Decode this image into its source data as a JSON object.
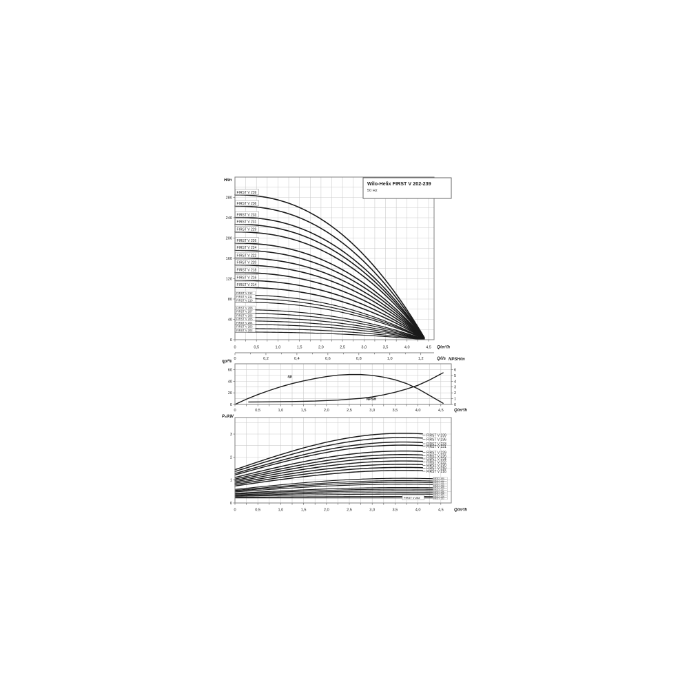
{
  "header": {
    "title": "Wilo-Helix FIRST V 202-239",
    "subtitle": "50 Hz"
  },
  "chart_data": [
    {
      "type": "line",
      "id": "head-flow",
      "title": "Wilo-Helix FIRST V 202-239",
      "subtitle": "50 Hz",
      "ylabel": "H/m",
      "xlabel": "Q/m³/h",
      "xlabel_secondary": "Q/l/s",
      "xlim": [
        0,
        4.63
      ],
      "ylim": [
        0,
        320
      ],
      "xtick_values": [
        0,
        0.5,
        1,
        1.5,
        2,
        2.5,
        3,
        3.5,
        4,
        4.5
      ],
      "xtick_labels": [
        "0",
        "0,5",
        "1,0",
        "1,5",
        "2,0",
        "2,5",
        "3,0",
        "3,5",
        "4,0",
        "4,5"
      ],
      "ytick_values": [
        0,
        40,
        80,
        120,
        160,
        200,
        240,
        280
      ],
      "xtick2_values_ls": [
        0,
        0.2,
        0.4,
        0.6,
        0.8,
        1.0,
        1.2
      ],
      "xtick2_labels": [
        "0",
        "0,2",
        "0,4",
        "0,6",
        "0,8",
        "1,0",
        "1,2"
      ],
      "ls_to_m3h": 3.6,
      "grid": {
        "x_step": 0.25,
        "y_step": 20
      },
      "curve_end_q": 4.42,
      "curve_exponent": 2.25,
      "series": [
        {
          "label": "FIRST V 239",
          "shutoff_head_m": 285,
          "small_label": false
        },
        {
          "label": "FIRST V 236",
          "shutoff_head_m": 263,
          "small_label": false
        },
        {
          "label": "FIRST V 233",
          "shutoff_head_m": 241,
          "small_label": false
        },
        {
          "label": "FIRST V 231",
          "shutoff_head_m": 227,
          "small_label": false
        },
        {
          "label": "FIRST V 229",
          "shutoff_head_m": 212,
          "small_label": false
        },
        {
          "label": "FIRST V 226",
          "shutoff_head_m": 190,
          "small_label": false
        },
        {
          "label": "FIRST V 224",
          "shutoff_head_m": 176,
          "small_label": false
        },
        {
          "label": "FIRST V 222",
          "shutoff_head_m": 161,
          "small_label": false
        },
        {
          "label": "FIRST V 220",
          "shutoff_head_m": 147,
          "small_label": false
        },
        {
          "label": "FIRST V 218",
          "shutoff_head_m": 132,
          "small_label": false
        },
        {
          "label": "FIRST V 216",
          "shutoff_head_m": 117,
          "small_label": false
        },
        {
          "label": "FIRST V 214",
          "shutoff_head_m": 103,
          "small_label": false
        },
        {
          "label": "FIRST V 212",
          "shutoff_head_m": 88,
          "small_label": true
        },
        {
          "label": "FIRST V 211",
          "shutoff_head_m": 81,
          "small_label": true
        },
        {
          "label": "FIRST V 210",
          "shutoff_head_m": 74,
          "small_label": true
        },
        {
          "label": "FIRST V 208",
          "shutoff_head_m": 59,
          "small_label": true
        },
        {
          "label": "FIRST V 207",
          "shutoff_head_m": 52,
          "small_label": true
        },
        {
          "label": "FIRST V 206",
          "shutoff_head_m": 44,
          "small_label": true
        },
        {
          "label": "FIRST V 205",
          "shutoff_head_m": 37,
          "small_label": true
        },
        {
          "label": "FIRST V 204",
          "shutoff_head_m": 30,
          "small_label": true
        },
        {
          "label": "FIRST V 203",
          "shutoff_head_m": 22,
          "small_label": true
        },
        {
          "label": "FIRST V 202",
          "shutoff_head_m": 15,
          "small_label": true
        }
      ]
    },
    {
      "type": "line",
      "id": "efficiency-npsh",
      "ylabel_left": "ηp/%",
      "ylabel_right": "NPSH/m",
      "xlabel": "Q/m³/h",
      "xlim": [
        0,
        4.73
      ],
      "ylim_left": [
        0,
        70
      ],
      "ylim_right": [
        0,
        7
      ],
      "ytick_left": [
        0,
        20,
        40,
        60
      ],
      "ytick_right": [
        0,
        1,
        2,
        3,
        4,
        5,
        6
      ],
      "grid": {
        "x_step": 0.25,
        "y_step_left": 10
      },
      "series": [
        {
          "name": "ηp",
          "axis": "left",
          "points": [
            [
              0,
              0
            ],
            [
              0.25,
              9
            ],
            [
              0.5,
              17
            ],
            [
              0.75,
              24
            ],
            [
              1,
              30.5
            ],
            [
              1.25,
              36
            ],
            [
              1.5,
              40.5
            ],
            [
              1.75,
              44.5
            ],
            [
              2,
              48
            ],
            [
              2.25,
              50.5
            ],
            [
              2.5,
              51.5
            ],
            [
              2.75,
              51.5
            ],
            [
              3,
              50
            ],
            [
              3.25,
              47
            ],
            [
              3.5,
              42.5
            ],
            [
              3.75,
              36
            ],
            [
              4,
              27
            ],
            [
              4.2,
              18
            ],
            [
              4.55,
              2
            ]
          ]
        },
        {
          "name": "NPSH",
          "axis": "right",
          "points": [
            [
              0.3,
              0.42
            ],
            [
              0.75,
              0.45
            ],
            [
              1.25,
              0.5
            ],
            [
              1.75,
              0.58
            ],
            [
              2.25,
              0.75
            ],
            [
              2.75,
              1.05
            ],
            [
              3,
              1.3
            ],
            [
              3.25,
              1.65
            ],
            [
              3.5,
              2.1
            ],
            [
              3.75,
              2.65
            ],
            [
              4,
              3.3
            ],
            [
              4.25,
              4.2
            ],
            [
              4.55,
              5.45
            ]
          ]
        }
      ],
      "inline_labels": [
        {
          "text": "ηp",
          "q": 1.2,
          "value_left": 46,
          "style": "eta"
        },
        {
          "text": "NPSH",
          "q": 2.98,
          "value_left": 7,
          "style": "npsh"
        }
      ]
    },
    {
      "type": "line",
      "id": "power",
      "ylabel": "P₂/kW",
      "xlabel": "Q/m³/h",
      "xlim": [
        0,
        4.73
      ],
      "ylim": [
        0,
        3.7
      ],
      "ytick_values": [
        0,
        1,
        2,
        3
      ],
      "grid": {
        "x_step": 0.25,
        "y_step": 0.5
      },
      "curve_end_q_labeled": 4.1,
      "curve_end_q_small": 4.6,
      "boxed_label": "FIRST V 202",
      "series": [
        {
          "label": "FIRST V 239",
          "p0_kw": 1.45,
          "p_end_kw": 2.95,
          "small_label": false
        },
        {
          "label": "FIRST V 236",
          "p0_kw": 1.37,
          "p_end_kw": 2.77,
          "small_label": false
        },
        {
          "label": "FIRST V 233",
          "p0_kw": 1.28,
          "p_end_kw": 2.58,
          "small_label": false
        },
        {
          "label": "FIRST V 231",
          "p0_kw": 1.22,
          "p_end_kw": 2.45,
          "small_label": false
        },
        {
          "label": "FIRST V 229",
          "p0_kw": 1.11,
          "p_end_kw": 2.2,
          "small_label": false
        },
        {
          "label": "FIRST V 226",
          "p0_kw": 1.04,
          "p_end_kw": 2.05,
          "small_label": false
        },
        {
          "label": "FIRST V 224",
          "p0_kw": 0.98,
          "p_end_kw": 1.92,
          "small_label": false
        },
        {
          "label": "FIRST V 222",
          "p0_kw": 0.92,
          "p_end_kw": 1.78,
          "small_label": false
        },
        {
          "label": "FIRST V 220",
          "p0_kw": 0.86,
          "p_end_kw": 1.64,
          "small_label": false
        },
        {
          "label": "FIRST V 218",
          "p0_kw": 0.8,
          "p_end_kw": 1.51,
          "small_label": false
        },
        {
          "label": "FIRST V 216",
          "p0_kw": 0.74,
          "p_end_kw": 1.38,
          "small_label": false
        },
        {
          "label": "FIRST V 214",
          "p0_kw": 0.59,
          "p_end_kw": 1.05,
          "small_label": true
        },
        {
          "label": "FIRST V 212",
          "p0_kw": 0.55,
          "p_end_kw": 0.95,
          "small_label": true
        },
        {
          "label": "FIRST V 211",
          "p0_kw": 0.52,
          "p_end_kw": 0.88,
          "small_label": true
        },
        {
          "label": "FIRST V 210",
          "p0_kw": 0.48,
          "p_end_kw": 0.8,
          "small_label": true
        },
        {
          "label": "FIRST V 208",
          "p0_kw": 0.42,
          "p_end_kw": 0.66,
          "small_label": true
        },
        {
          "label": "FIRST V 207",
          "p0_kw": 0.39,
          "p_end_kw": 0.59,
          "small_label": true
        },
        {
          "label": "FIRST V 206",
          "p0_kw": 0.35,
          "p_end_kw": 0.52,
          "small_label": true
        },
        {
          "label": "FIRST V 205",
          "p0_kw": 0.32,
          "p_end_kw": 0.45,
          "small_label": true
        },
        {
          "label": "FIRST V 204",
          "p0_kw": 0.29,
          "p_end_kw": 0.38,
          "small_label": true
        },
        {
          "label": "FIRST V 203",
          "p0_kw": 0.25,
          "p_end_kw": 0.28,
          "small_label": true
        },
        {
          "label": "FIRST V 202",
          "p0_kw": 0.22,
          "p_end_kw": 0.22,
          "small_label": true,
          "boxed": true
        }
      ]
    }
  ],
  "colors": {
    "curve": "#1a1a1a",
    "grid": "#c9c9c9",
    "frame": "#7d7d7d",
    "label_box_border": "#8a8a8a",
    "background": "#ffffff"
  }
}
